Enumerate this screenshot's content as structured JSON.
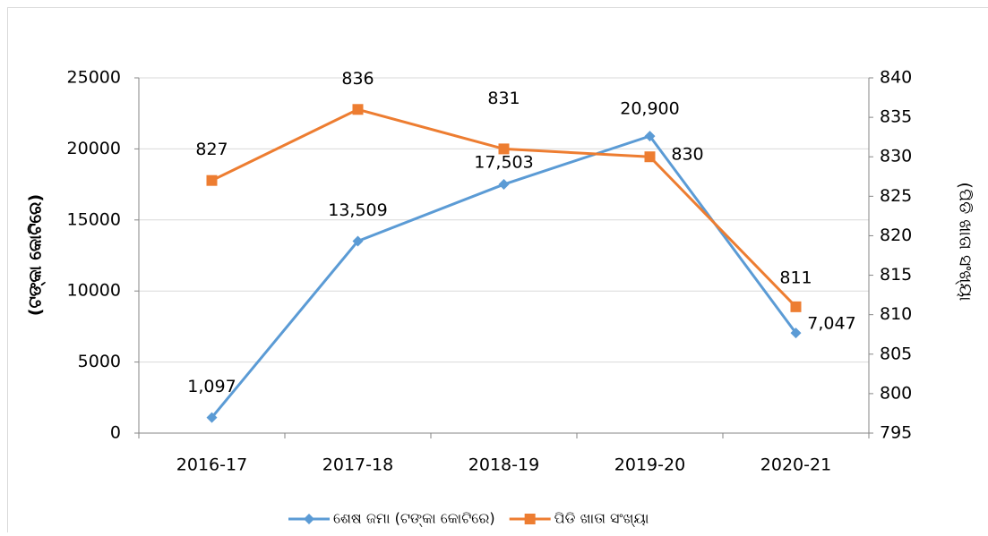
{
  "chart_data": {
    "type": "line",
    "categories": [
      "2016-17",
      "2017-18",
      "2018-19",
      "2019-20",
      "2020-21"
    ],
    "y_label": "(ଟଙ୍କା କୋଟିରେ)",
    "y2_label": "(ପିଡି ଖାତା ସଂଖ୍ୟା",
    "ylim": [
      0,
      25000
    ],
    "yticks": [
      0,
      5000,
      10000,
      15000,
      20000,
      25000
    ],
    "y2lim": [
      795,
      840
    ],
    "y2ticks": [
      795,
      800,
      805,
      810,
      815,
      820,
      825,
      830,
      835,
      840
    ],
    "grid": true,
    "legend": "bottom",
    "series": [
      {
        "name": "ଶେଷ ଜମା (ଟଙ୍କା କୋଟିରେ)",
        "color": "#5b9bd5",
        "marker": "diamond",
        "values": [
          1097,
          13509,
          17503,
          20900,
          7047
        ],
        "value_labels": [
          "1,097",
          "13,509",
          "17,503",
          "20,900",
          "7,047"
        ]
      },
      {
        "name": "ପିଡି ଖାତା ସଂଖ୍ୟା",
        "color": "#ed7d31",
        "marker": "square",
        "axis": "y2",
        "values": [
          827,
          836,
          831,
          830,
          811
        ]
      }
    ]
  }
}
